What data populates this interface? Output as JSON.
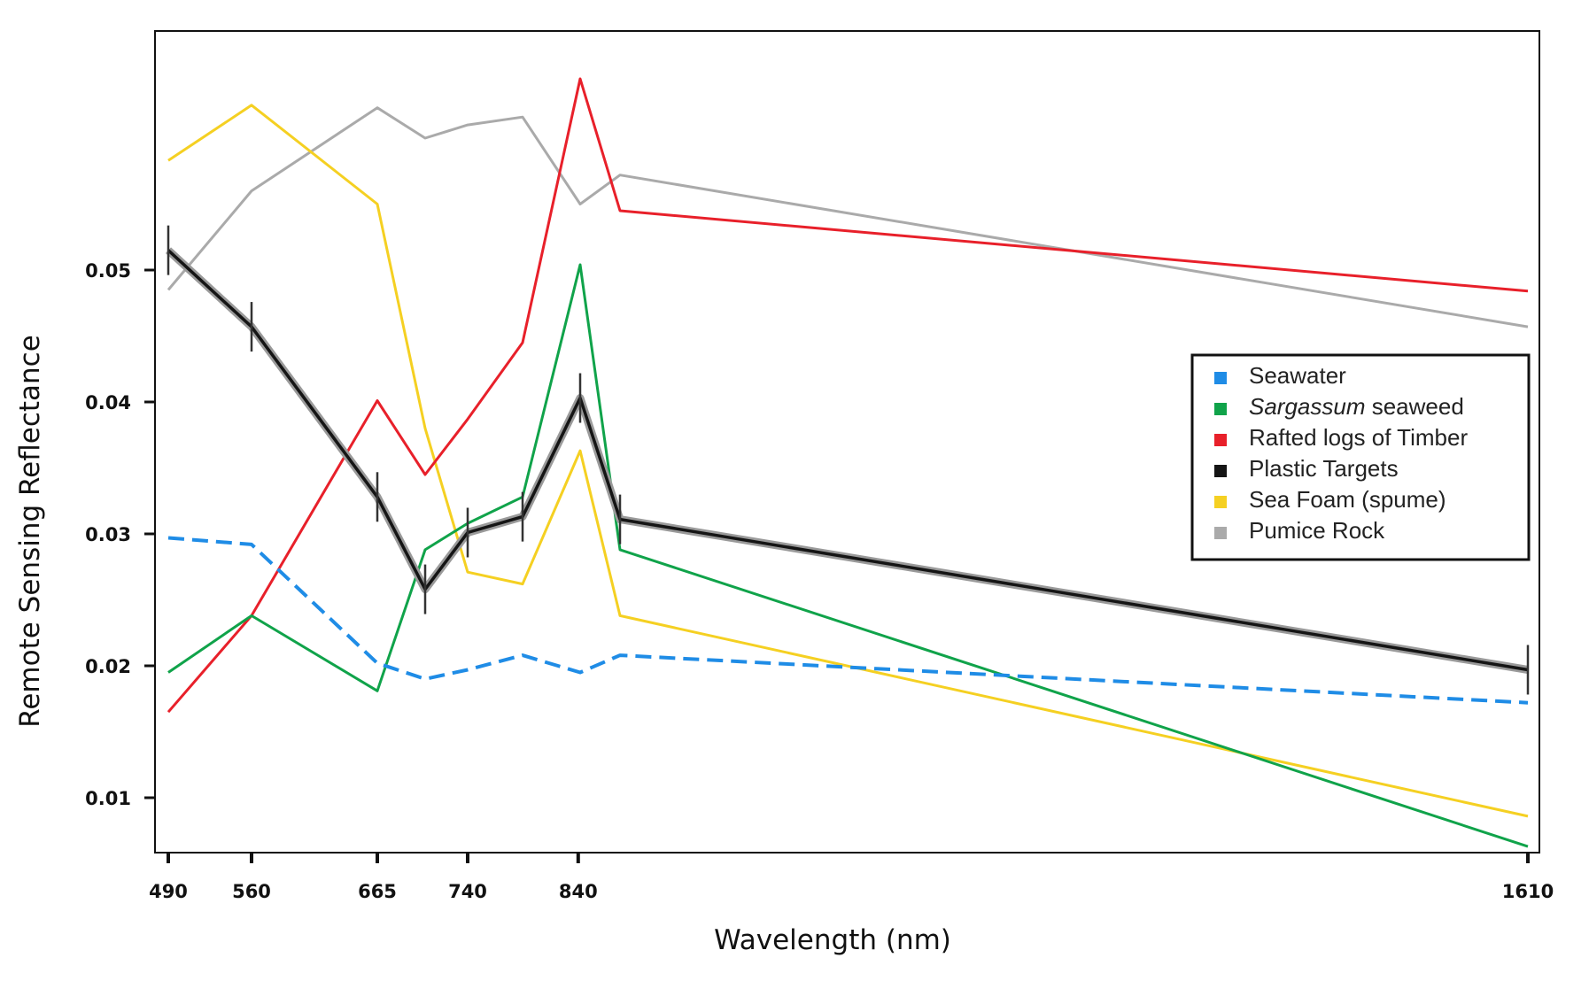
{
  "chart_data": {
    "type": "line",
    "title": "",
    "xlabel": "Wavelength (nm)",
    "ylabel": "Remote Sensing Reflectance",
    "x_tick_labels": [
      "490",
      "560",
      "665",
      "740",
      "840",
      "1610"
    ],
    "y_tick_labels": [
      "0.01",
      "0.02",
      "0.03",
      "0.04",
      "0.05"
    ],
    "ylim": [
      0.004,
      0.0665
    ],
    "grid": false,
    "legend_position": "right",
    "x": [
      490,
      560,
      665,
      705,
      740,
      783,
      842,
      865,
      1610
    ],
    "series": [
      {
        "name": "Seawater",
        "color": "#1f8ce6",
        "dashed": true,
        "values": [
          0.0297,
          0.0292,
          0.0202,
          0.019,
          0.0197,
          0.0208,
          0.0195,
          0.0208,
          0.0172
        ]
      },
      {
        "name_italic": "Sargassum",
        "name": " seaweed",
        "color": "#10a34a",
        "values": [
          0.0195,
          0.0238,
          0.0181,
          0.0288,
          0.0308,
          0.0328,
          0.0504,
          0.0288,
          0.0063
        ]
      },
      {
        "name": "Rafted logs of Timber",
        "color": "#e8202a",
        "values": [
          0.0165,
          0.0238,
          0.0401,
          0.0345,
          0.0387,
          0.0445,
          0.0645,
          0.0545,
          0.0484
        ]
      },
      {
        "name": "Plastic Targets",
        "color": "#151515",
        "error_bars": true,
        "values": [
          0.0515,
          0.0457,
          0.0328,
          0.0258,
          0.0301,
          0.0313,
          0.0403,
          0.0311,
          0.0197
        ]
      },
      {
        "name": "Sea Foam (spume)",
        "color": "#f5d022",
        "values": [
          0.0583,
          0.0625,
          0.055,
          0.038,
          0.0271,
          0.0262,
          0.0363,
          0.0238,
          0.0086
        ]
      },
      {
        "name": "Pumice Rock",
        "color": "#aaaaaa",
        "values": [
          0.0485,
          0.056,
          0.0623,
          0.06,
          0.061,
          0.0616,
          0.055,
          0.0572,
          0.0457
        ]
      }
    ]
  }
}
